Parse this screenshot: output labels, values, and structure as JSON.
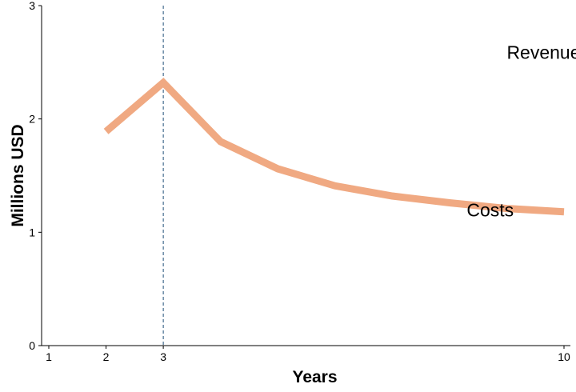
{
  "chart_data": {
    "type": "line",
    "title": "",
    "xlabel": "Years",
    "ylabel": "Millions USD",
    "xlim": [
      1,
      10
    ],
    "ylim": [
      0,
      3
    ],
    "x_ticks": [
      1,
      2,
      3,
      10
    ],
    "y_ticks": [
      0,
      1,
      2,
      3
    ],
    "grid": false,
    "legend": "none",
    "vline": {
      "x": 3,
      "style": "dashed",
      "color": "#1f4e79"
    },
    "series": [
      {
        "color": "#f0a982",
        "x": [
          2,
          3,
          4,
          5,
          6,
          7,
          8,
          9,
          10
        ],
        "y": [
          1.89,
          2.32,
          1.8,
          1.56,
          1.41,
          1.32,
          1.26,
          1.21,
          1.18
        ]
      }
    ],
    "annotations": [
      {
        "text": "Revenues",
        "x": 9.0,
        "y": 2.53
      },
      {
        "text": "Costs",
        "x": 8.3,
        "y": 1.14
      }
    ]
  }
}
